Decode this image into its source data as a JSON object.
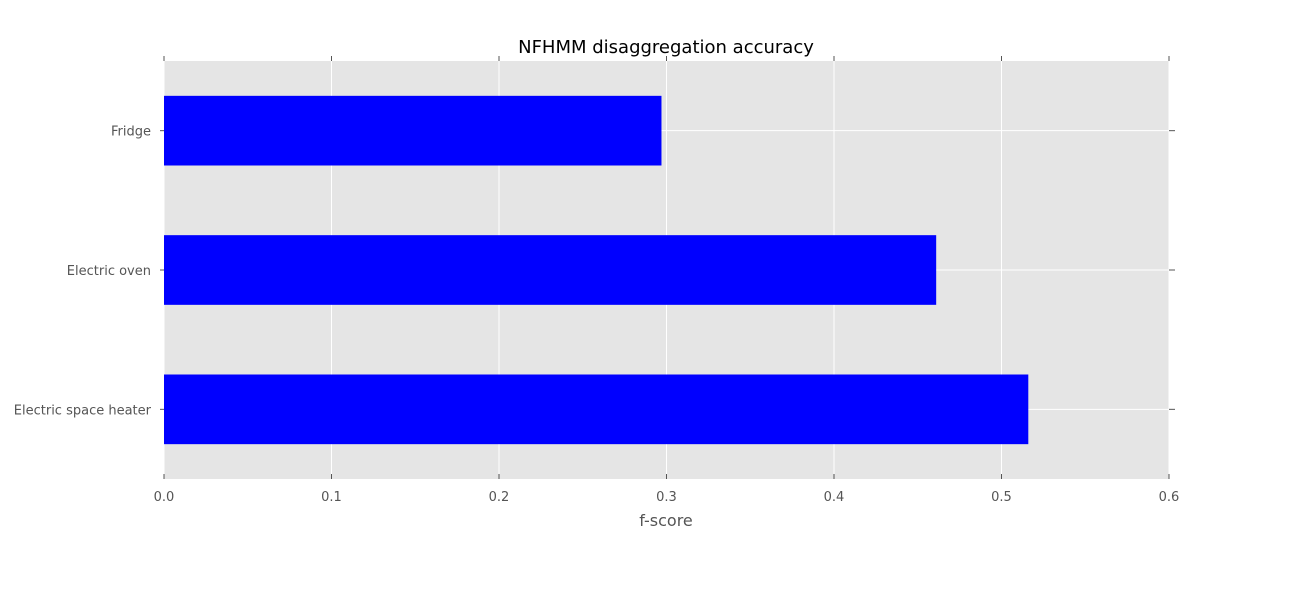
{
  "chart_data": {
    "type": "bar",
    "orientation": "horizontal",
    "title": "NFHMM disaggregation accuracy",
    "xlabel": "f-score",
    "ylabel": "",
    "categories": [
      "Electric space heater",
      "Electric oven",
      "Fridge"
    ],
    "values": [
      0.516,
      0.461,
      0.297
    ],
    "xlim": [
      0.0,
      0.6
    ],
    "xticks": [
      "0.0",
      "0.1",
      "0.2",
      "0.3",
      "0.4",
      "0.5",
      "0.6"
    ],
    "grid": true,
    "legend": "none",
    "colors": {
      "bar": "#0000ff",
      "plot_background": "#e5e5e5",
      "grid": "#ffffff",
      "tick_label": "#555555",
      "title": "#000000"
    }
  }
}
